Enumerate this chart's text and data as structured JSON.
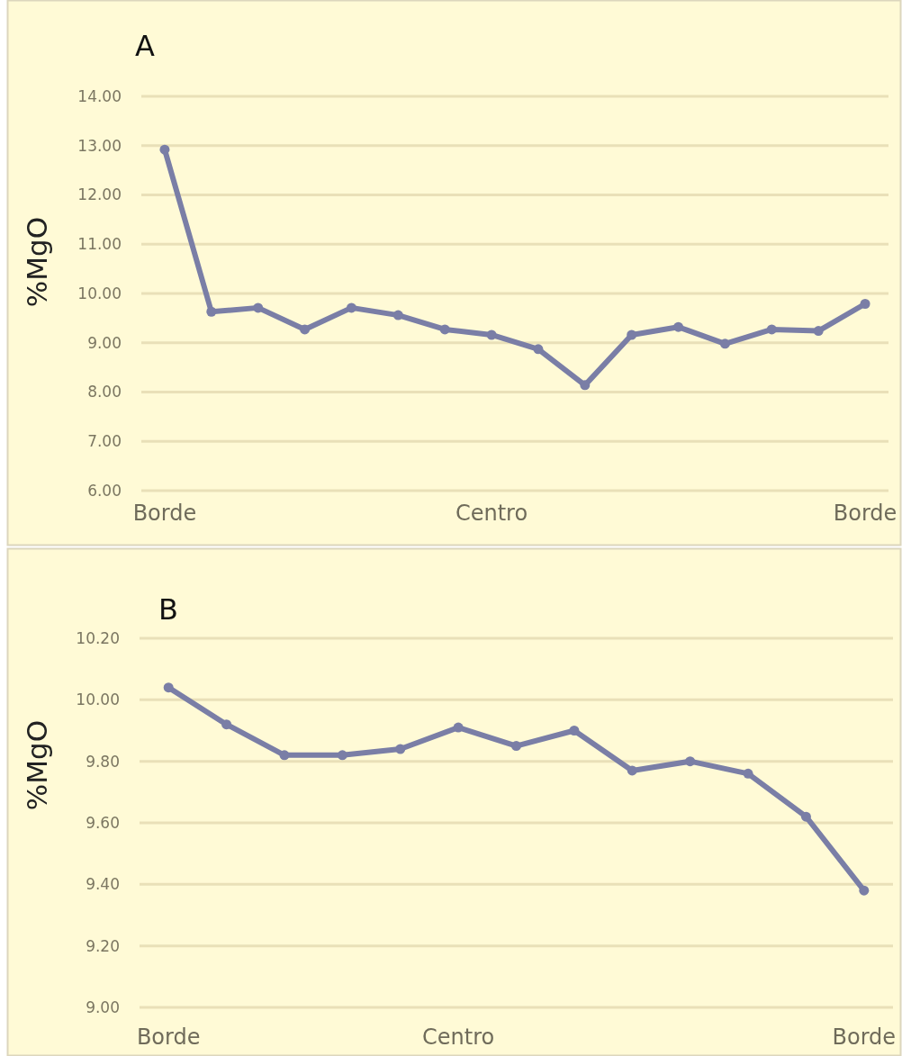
{
  "chart_data": [
    {
      "type": "line",
      "title": "A",
      "ylabel": "%MgO",
      "categories": [
        "Borde",
        null,
        null,
        null,
        null,
        null,
        null,
        "Centro",
        null,
        null,
        null,
        null,
        null,
        null,
        null,
        "Borde"
      ],
      "series": [
        {
          "color": "#7a7ea6",
          "values": [
            12.92,
            9.63,
            9.71,
            9.27,
            9.71,
            9.56,
            9.27,
            9.16,
            8.87,
            8.14,
            9.16,
            9.32,
            8.98,
            9.27,
            9.24,
            9.79
          ]
        }
      ],
      "ylim": [
        6,
        14
      ],
      "yticks": [
        {
          "value": 6,
          "label": "6.00"
        },
        {
          "value": 7,
          "label": "7.00"
        },
        {
          "value": 8,
          "label": "8.00"
        },
        {
          "value": 9,
          "label": "9.00"
        },
        {
          "value": 10,
          "label": "10.00"
        },
        {
          "value": 11,
          "label": "11.00"
        },
        {
          "value": 12,
          "label": "12.00"
        },
        {
          "value": 13,
          "label": "13.00"
        },
        {
          "value": 14,
          "label": "14.00"
        }
      ],
      "grid": "y",
      "marker": "circle"
    },
    {
      "type": "line",
      "title": "B",
      "ylabel": "%MgO",
      "categories": [
        "Borde",
        null,
        null,
        null,
        null,
        "Centro",
        null,
        null,
        null,
        null,
        null,
        null,
        "Borde"
      ],
      "series": [
        {
          "color": "#7a7ea6",
          "values": [
            10.04,
            9.92,
            9.82,
            9.82,
            9.84,
            9.91,
            9.85,
            9.9,
            9.77,
            9.8,
            9.76,
            9.62,
            9.38
          ]
        }
      ],
      "ylim": [
        9,
        10.2
      ],
      "yticks": [
        {
          "value": 9,
          "label": "9.00"
        },
        {
          "value": 9.2,
          "label": "9.20"
        },
        {
          "value": 9.4,
          "label": "9.40"
        },
        {
          "value": 9.6,
          "label": "9.60"
        },
        {
          "value": 9.8,
          "label": "9.80"
        },
        {
          "value": 10,
          "label": "10.00"
        },
        {
          "value": 10.2,
          "label": "10.20"
        }
      ],
      "grid": "y",
      "marker": "circle"
    }
  ]
}
